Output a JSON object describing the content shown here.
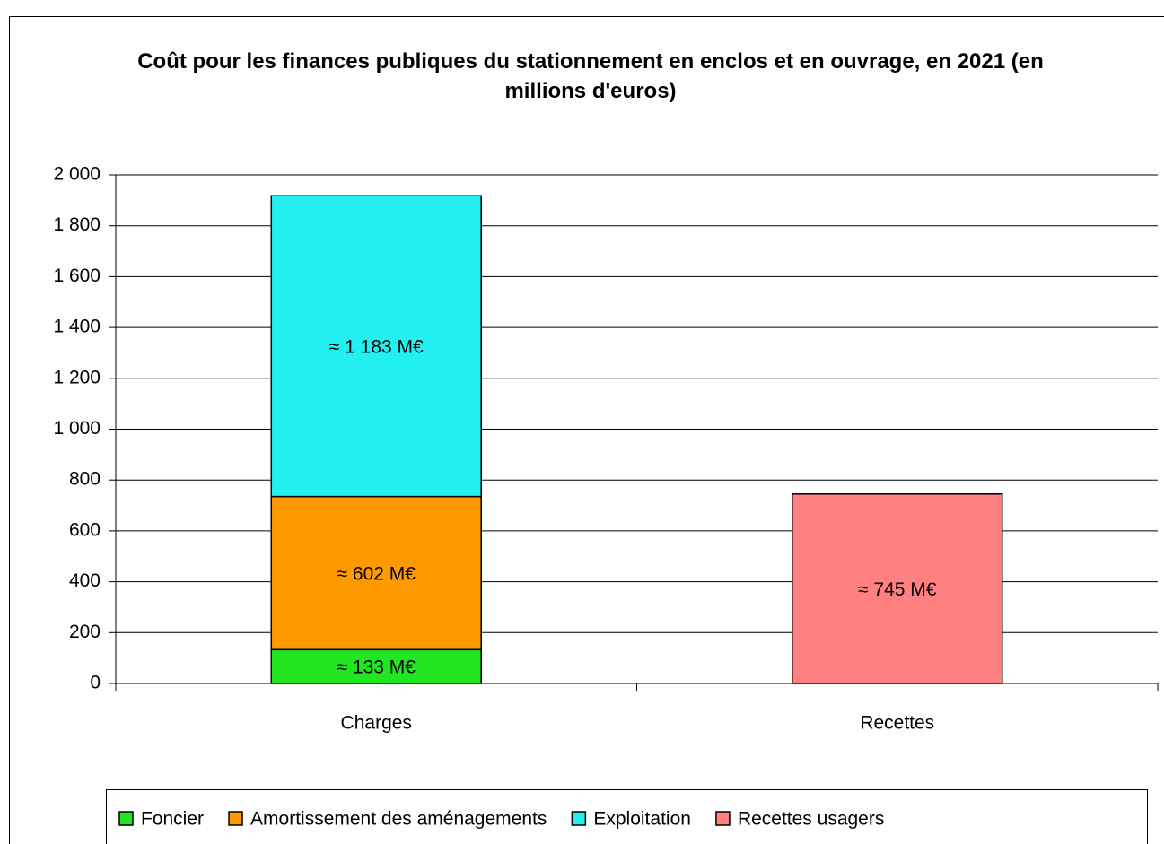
{
  "chart_data": {
    "type": "stacked_bar",
    "title": "Coût pour les finances publiques du stationnement en enclos et en ouvrage, en 2021 (en millions d'euros)",
    "categories": [
      "Charges",
      "Recettes"
    ],
    "series": [
      {
        "name": "Foncier",
        "color": "#22e622",
        "values": [
          133,
          null
        ],
        "value_labels": [
          "≈ 133 M€",
          null
        ]
      },
      {
        "name": "Amortissement des aménagements",
        "color": "#ff9900",
        "values": [
          602,
          null
        ],
        "value_labels": [
          "≈ 602 M€",
          null
        ]
      },
      {
        "name": "Exploitation",
        "color": "#22f0f0",
        "values": [
          1183,
          null
        ],
        "value_labels": [
          "≈ 1 183 M€",
          null
        ]
      },
      {
        "name": "Recettes usagers",
        "color": "#ff8080",
        "values": [
          null,
          745
        ],
        "value_labels": [
          null,
          "≈ 745 M€"
        ]
      }
    ],
    "ylim": [
      0,
      2000
    ],
    "yticks": [
      0,
      200,
      400,
      600,
      800,
      {
        "value": 1000,
        "label": "1 000"
      },
      {
        "value": 1200,
        "label": "1 200"
      },
      {
        "value": 1400,
        "label": "1 400"
      },
      {
        "value": 1600,
        "label": "1 600"
      },
      {
        "value": 1800,
        "label": "1 800"
      },
      {
        "value": 2000,
        "label": "2 000"
      }
    ],
    "grid": true,
    "legend": "bottom"
  }
}
